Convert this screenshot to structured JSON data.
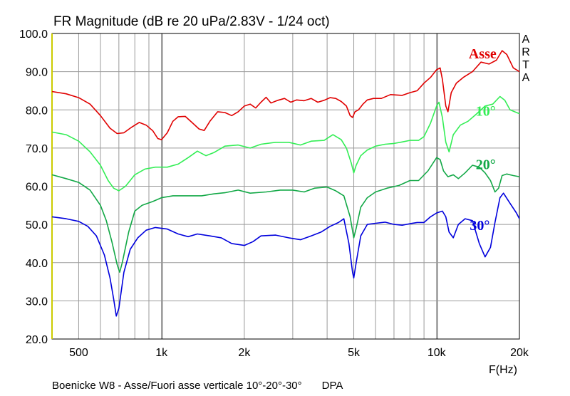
{
  "title": "FR Magnitude (dB re 20 uPa/2.83V - 1/24 oct)",
  "footer": "Boenicke W8 - Asse/Fuori asse verticale 10°-20°-30°",
  "footer_tag": "DPA",
  "brand_letters": [
    "A",
    "R",
    "T",
    "A"
  ],
  "colors": {
    "asse": "#e00000",
    "deg10": "#33ee55",
    "deg20": "#12a846",
    "deg30": "#0000dd",
    "grid": "#9a9a9a",
    "yaxis": "#cccc00"
  },
  "chart_data": {
    "type": "line",
    "title": "FR Magnitude (dB re 20 uPa/2.83V - 1/24 oct)",
    "xlabel": "F(Hz)",
    "ylabel": "",
    "xscale": "log",
    "xlim": [
      400,
      20000
    ],
    "ylim": [
      20,
      100
    ],
    "grid": true,
    "xticks": [
      {
        "value": 500,
        "label": "500"
      },
      {
        "value": 1000,
        "label": "1k"
      },
      {
        "value": 2000,
        "label": "2k"
      },
      {
        "value": 5000,
        "label": "5k"
      },
      {
        "value": 10000,
        "label": "10k"
      },
      {
        "value": 20000,
        "label": "20k"
      }
    ],
    "yticks": [
      {
        "value": 20,
        "label": "20.0"
      },
      {
        "value": 30,
        "label": "30.0"
      },
      {
        "value": 40,
        "label": "40.0"
      },
      {
        "value": 50,
        "label": "50.0"
      },
      {
        "value": 60,
        "label": "60.0"
      },
      {
        "value": 70,
        "label": "70.0"
      },
      {
        "value": 80,
        "label": "80.0"
      },
      {
        "value": 90,
        "label": "90.0"
      },
      {
        "value": 100,
        "label": "100.0"
      }
    ],
    "series": [
      {
        "name": "Asse",
        "color": "#e00000",
        "label_at": [
          16500,
          93.5
        ],
        "points": [
          [
            400,
            84.8
          ],
          [
            450,
            84.2
          ],
          [
            500,
            83.2
          ],
          [
            550,
            81.5
          ],
          [
            600,
            78.5
          ],
          [
            650,
            75.2
          ],
          [
            690,
            73.8
          ],
          [
            730,
            74.0
          ],
          [
            780,
            75.5
          ],
          [
            830,
            76.7
          ],
          [
            880,
            76.0
          ],
          [
            930,
            74.5
          ],
          [
            970,
            72.5
          ],
          [
            1000,
            72.2
          ],
          [
            1050,
            74.0
          ],
          [
            1100,
            77.0
          ],
          [
            1150,
            78.2
          ],
          [
            1220,
            78.3
          ],
          [
            1300,
            76.5
          ],
          [
            1370,
            75.0
          ],
          [
            1430,
            74.6
          ],
          [
            1500,
            77.0
          ],
          [
            1600,
            79.5
          ],
          [
            1700,
            79.3
          ],
          [
            1800,
            78.5
          ],
          [
            1900,
            79.5
          ],
          [
            2000,
            81.0
          ],
          [
            2100,
            81.5
          ],
          [
            2200,
            80.5
          ],
          [
            2300,
            82.0
          ],
          [
            2400,
            83.3
          ],
          [
            2500,
            81.8
          ],
          [
            2650,
            82.5
          ],
          [
            2800,
            83.0
          ],
          [
            2950,
            82.0
          ],
          [
            3100,
            82.6
          ],
          [
            3300,
            82.4
          ],
          [
            3500,
            83.0
          ],
          [
            3700,
            82.0
          ],
          [
            3900,
            82.5
          ],
          [
            4100,
            83.2
          ],
          [
            4300,
            83.0
          ],
          [
            4500,
            82.2
          ],
          [
            4700,
            81.0
          ],
          [
            4850,
            78.5
          ],
          [
            4950,
            78.0
          ],
          [
            5050,
            79.5
          ],
          [
            5200,
            80.0
          ],
          [
            5400,
            81.5
          ],
          [
            5600,
            82.6
          ],
          [
            5900,
            83.0
          ],
          [
            6300,
            83.0
          ],
          [
            6800,
            84.0
          ],
          [
            7500,
            83.8
          ],
          [
            8000,
            84.5
          ],
          [
            8500,
            85.0
          ],
          [
            9000,
            87.0
          ],
          [
            9500,
            88.5
          ],
          [
            10000,
            90.5
          ],
          [
            10300,
            91.0
          ],
          [
            10500,
            88.0
          ],
          [
            10800,
            81.0
          ],
          [
            11000,
            79.5
          ],
          [
            11300,
            84.5
          ],
          [
            11800,
            87.0
          ],
          [
            12500,
            88.5
          ],
          [
            13500,
            90.0
          ],
          [
            14500,
            92.5
          ],
          [
            15500,
            92.0
          ],
          [
            16500,
            93.0
          ],
          [
            17300,
            95.5
          ],
          [
            18000,
            94.5
          ],
          [
            19000,
            91.0
          ],
          [
            20000,
            90.0
          ]
        ]
      },
      {
        "name": "10°",
        "color": "#33ee55",
        "label_at": [
          16400,
          78.5
        ],
        "points": [
          [
            400,
            74.2
          ],
          [
            450,
            73.5
          ],
          [
            500,
            71.8
          ],
          [
            550,
            69.0
          ],
          [
            600,
            65.5
          ],
          [
            640,
            61.5
          ],
          [
            670,
            59.5
          ],
          [
            700,
            58.8
          ],
          [
            740,
            60.0
          ],
          [
            800,
            63.0
          ],
          [
            870,
            64.5
          ],
          [
            950,
            65.0
          ],
          [
            1050,
            65.0
          ],
          [
            1150,
            65.8
          ],
          [
            1250,
            67.5
          ],
          [
            1350,
            69.2
          ],
          [
            1450,
            68.0
          ],
          [
            1550,
            68.8
          ],
          [
            1700,
            70.5
          ],
          [
            1900,
            70.8
          ],
          [
            2100,
            70.0
          ],
          [
            2300,
            71.0
          ],
          [
            2600,
            71.5
          ],
          [
            2900,
            71.5
          ],
          [
            3200,
            70.8
          ],
          [
            3500,
            71.8
          ],
          [
            3900,
            72.0
          ],
          [
            4200,
            73.5
          ],
          [
            4500,
            72.2
          ],
          [
            4700,
            70.0
          ],
          [
            4900,
            66.0
          ],
          [
            5000,
            63.5
          ],
          [
            5100,
            65.5
          ],
          [
            5300,
            68.0
          ],
          [
            5600,
            69.5
          ],
          [
            6000,
            70.5
          ],
          [
            6500,
            71.0
          ],
          [
            7000,
            71.2
          ],
          [
            7500,
            71.6
          ],
          [
            8000,
            72.0
          ],
          [
            8600,
            72.0
          ],
          [
            9000,
            73.0
          ],
          [
            9500,
            76.5
          ],
          [
            10000,
            81.0
          ],
          [
            10200,
            82.0
          ],
          [
            10500,
            78.0
          ],
          [
            10800,
            71.5
          ],
          [
            11100,
            69.0
          ],
          [
            11500,
            73.5
          ],
          [
            12200,
            76.0
          ],
          [
            13000,
            77.0
          ],
          [
            14000,
            79.0
          ],
          [
            15000,
            81.0
          ],
          [
            16000,
            81.5
          ],
          [
            17000,
            83.5
          ],
          [
            17700,
            82.5
          ],
          [
            18500,
            80.0
          ],
          [
            20000,
            79.0
          ]
        ]
      },
      {
        "name": "20°",
        "color": "#12a846",
        "label_at": [
          16400,
          64.5
        ],
        "points": [
          [
            400,
            63.0
          ],
          [
            450,
            62.0
          ],
          [
            500,
            61.0
          ],
          [
            550,
            59.0
          ],
          [
            600,
            55.0
          ],
          [
            630,
            51.0
          ],
          [
            660,
            45.5
          ],
          [
            690,
            39.5
          ],
          [
            705,
            37.5
          ],
          [
            720,
            40.0
          ],
          [
            760,
            48.0
          ],
          [
            800,
            53.5
          ],
          [
            850,
            55.0
          ],
          [
            930,
            56.0
          ],
          [
            1000,
            57.0
          ],
          [
            1100,
            57.5
          ],
          [
            1250,
            57.5
          ],
          [
            1400,
            57.5
          ],
          [
            1550,
            58.0
          ],
          [
            1700,
            58.3
          ],
          [
            1900,
            59.0
          ],
          [
            2100,
            58.2
          ],
          [
            2400,
            58.5
          ],
          [
            2700,
            59.0
          ],
          [
            3000,
            59.0
          ],
          [
            3300,
            58.5
          ],
          [
            3600,
            59.5
          ],
          [
            4000,
            59.8
          ],
          [
            4300,
            58.8
          ],
          [
            4600,
            57.5
          ],
          [
            4850,
            52.0
          ],
          [
            5000,
            46.5
          ],
          [
            5100,
            49.0
          ],
          [
            5300,
            54.5
          ],
          [
            5600,
            57.0
          ],
          [
            6000,
            58.5
          ],
          [
            6600,
            59.5
          ],
          [
            7300,
            60.2
          ],
          [
            8000,
            61.5
          ],
          [
            8600,
            61.5
          ],
          [
            9300,
            64.0
          ],
          [
            10000,
            67.5
          ],
          [
            10300,
            67.0
          ],
          [
            10600,
            64.0
          ],
          [
            11000,
            62.5
          ],
          [
            11500,
            63.0
          ],
          [
            12000,
            62.0
          ],
          [
            12700,
            63.5
          ],
          [
            13500,
            65.5
          ],
          [
            14300,
            65.0
          ],
          [
            15000,
            63.5
          ],
          [
            15700,
            61.5
          ],
          [
            16300,
            58.5
          ],
          [
            16800,
            59.5
          ],
          [
            17300,
            62.8
          ],
          [
            18000,
            63.2
          ],
          [
            19000,
            62.8
          ],
          [
            20000,
            62.5
          ]
        ]
      },
      {
        "name": "30°",
        "color": "#0000dd",
        "label_at": [
          15600,
          48.5
        ],
        "points": [
          [
            400,
            52.0
          ],
          [
            450,
            51.5
          ],
          [
            500,
            50.8
          ],
          [
            540,
            49.5
          ],
          [
            580,
            47.0
          ],
          [
            620,
            42.0
          ],
          [
            650,
            36.0
          ],
          [
            670,
            30.5
          ],
          [
            685,
            26.0
          ],
          [
            700,
            28.0
          ],
          [
            730,
            37.5
          ],
          [
            770,
            43.5
          ],
          [
            820,
            46.5
          ],
          [
            880,
            48.5
          ],
          [
            950,
            49.2
          ],
          [
            1050,
            48.8
          ],
          [
            1150,
            47.5
          ],
          [
            1250,
            46.8
          ],
          [
            1350,
            47.5
          ],
          [
            1500,
            47.0
          ],
          [
            1650,
            46.5
          ],
          [
            1800,
            45.0
          ],
          [
            2000,
            44.5
          ],
          [
            2150,
            45.5
          ],
          [
            2300,
            47.0
          ],
          [
            2600,
            47.2
          ],
          [
            2900,
            46.5
          ],
          [
            3200,
            46.0
          ],
          [
            3500,
            47.0
          ],
          [
            3800,
            48.0
          ],
          [
            4100,
            49.5
          ],
          [
            4400,
            50.5
          ],
          [
            4600,
            51.5
          ],
          [
            4800,
            45.0
          ],
          [
            4950,
            37.5
          ],
          [
            5000,
            36.0
          ],
          [
            5100,
            40.0
          ],
          [
            5300,
            47.0
          ],
          [
            5600,
            50.0
          ],
          [
            6000,
            50.3
          ],
          [
            6500,
            50.6
          ],
          [
            7000,
            50.0
          ],
          [
            7500,
            49.8
          ],
          [
            8000,
            50.2
          ],
          [
            8500,
            50.5
          ],
          [
            9000,
            50.5
          ],
          [
            9500,
            52.0
          ],
          [
            10000,
            53.0
          ],
          [
            10500,
            53.5
          ],
          [
            10800,
            52.0
          ],
          [
            11100,
            48.0
          ],
          [
            11500,
            46.5
          ],
          [
            12000,
            50.0
          ],
          [
            12700,
            51.5
          ],
          [
            13500,
            51.0
          ],
          [
            14300,
            45.0
          ],
          [
            15000,
            41.5
          ],
          [
            15700,
            44.0
          ],
          [
            16300,
            50.5
          ],
          [
            17000,
            57.0
          ],
          [
            17500,
            58.2
          ],
          [
            18500,
            55.5
          ],
          [
            19500,
            53.0
          ],
          [
            20000,
            51.5
          ]
        ]
      }
    ]
  }
}
